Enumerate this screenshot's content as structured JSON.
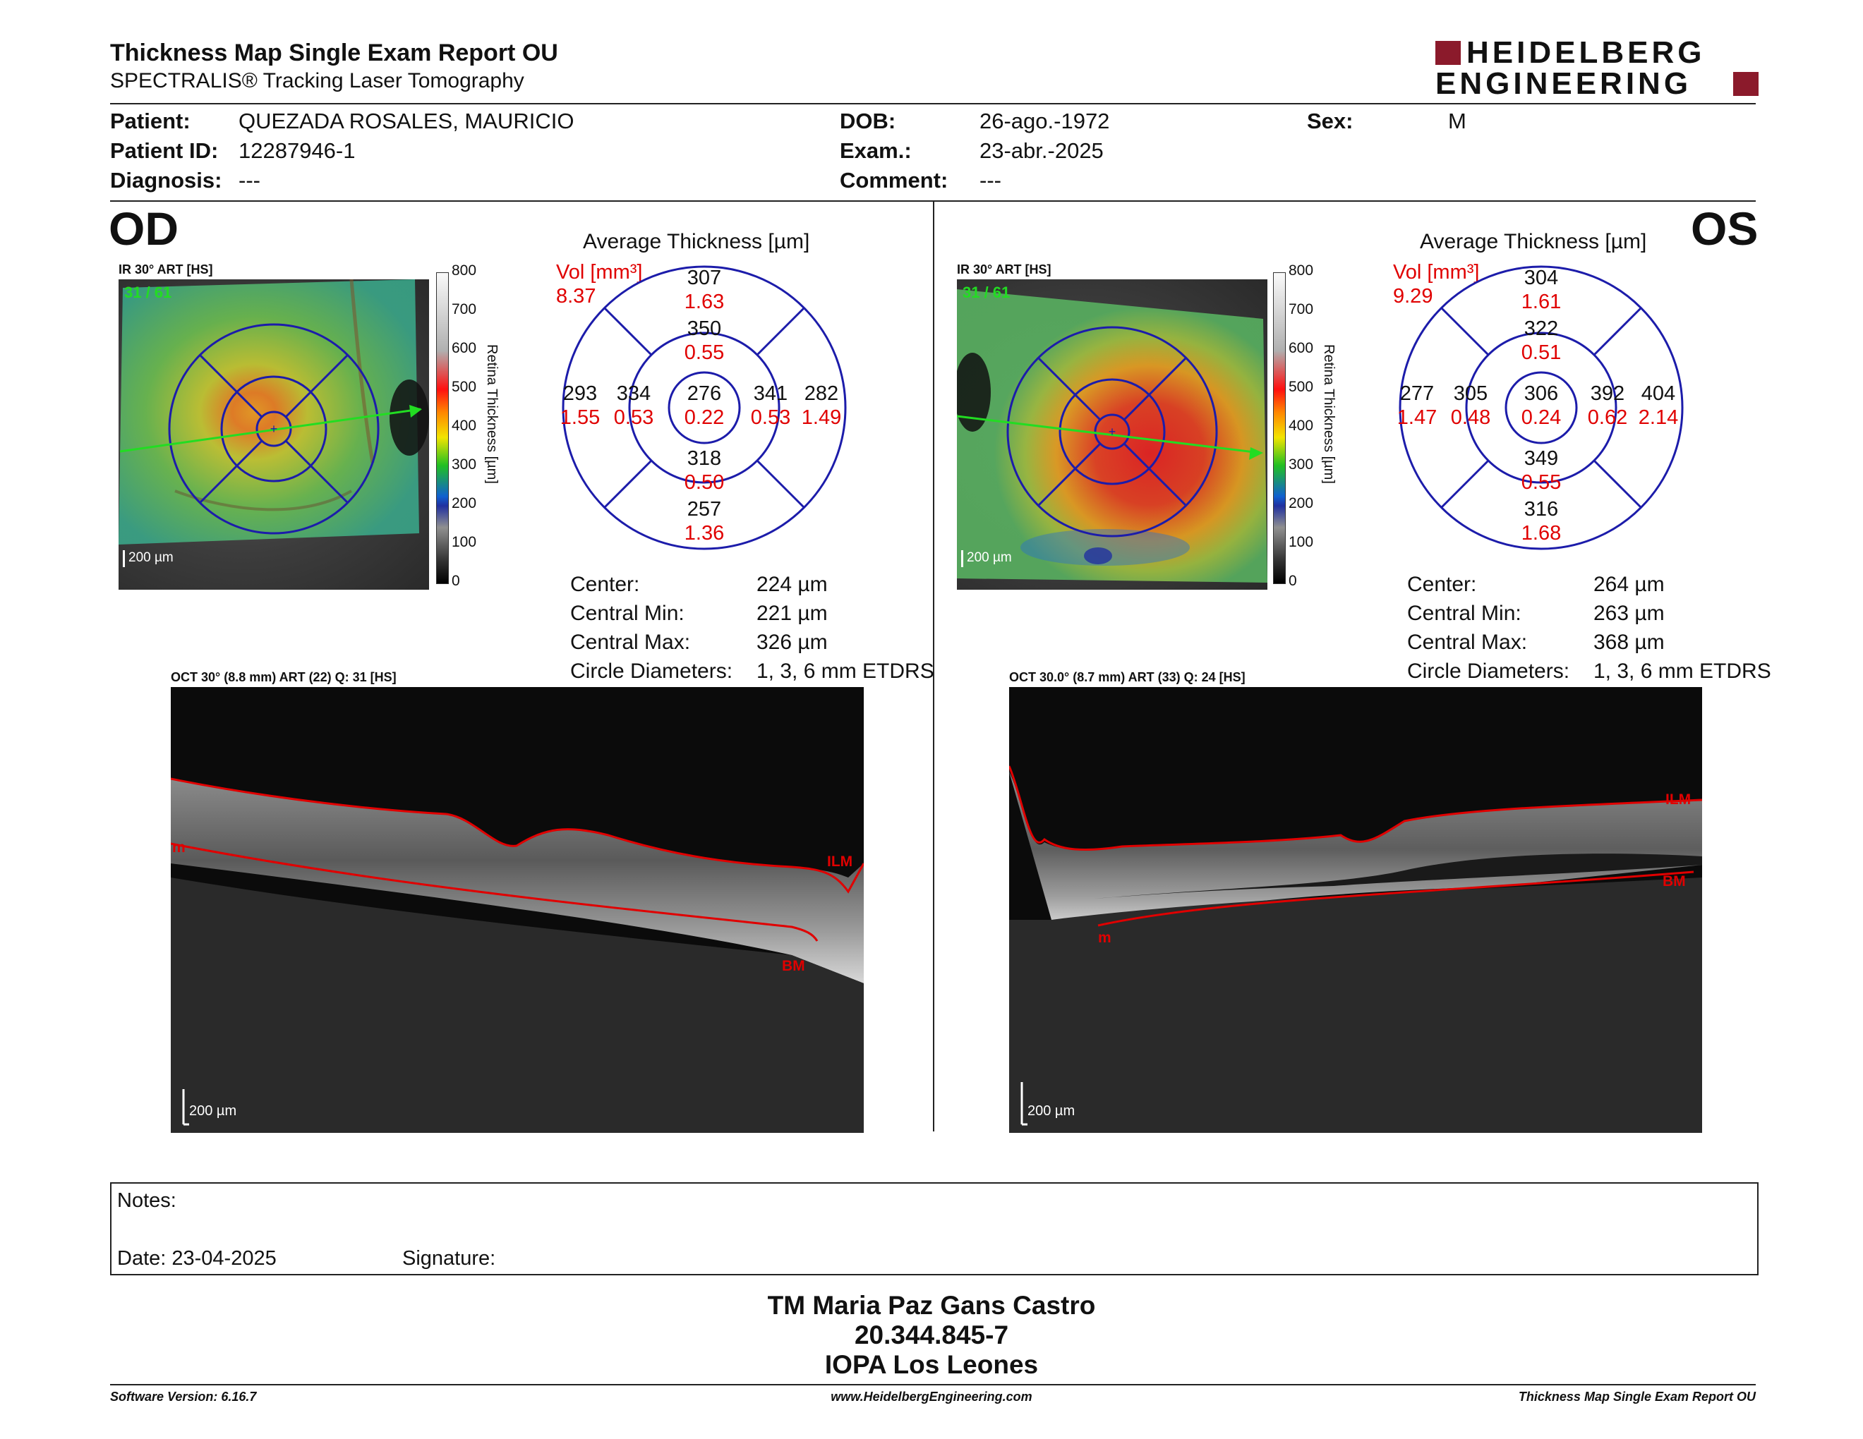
{
  "header": {
    "title": "Thickness Map Single Exam Report OU",
    "subtitle": "SPECTRALIS® Tracking Laser Tomography",
    "logo_line1": "HEIDELBERG",
    "logo_line2": "ENGINEERING"
  },
  "patient": {
    "patient_label": "Patient:",
    "patient_value": "QUEZADA ROSALES, MAURICIO",
    "patient_id_label": "Patient ID:",
    "patient_id_value": "12287946-1",
    "diagnosis_label": "Diagnosis:",
    "diagnosis_value": "---",
    "dob_label": "DOB:",
    "dob_value": "26-ago.-1972",
    "exam_label": "Exam.:",
    "exam_value": "23-abr.-2025",
    "comment_label": "Comment:",
    "comment_value": "---",
    "sex_label": "Sex:",
    "sex_value": "M"
  },
  "od": {
    "eye_label": "OD",
    "ir_label": "IR 30° ART [HS]",
    "ir_frame": "31 / 61",
    "ir_scale": "200 µm",
    "colorbar_ticks": [
      "800",
      "700",
      "600",
      "500",
      "400",
      "300",
      "200",
      "100",
      "0"
    ],
    "colorbar_title": "Retina  Thickness [µm]",
    "avg_title": "Average Thickness [µm]",
    "vol_label": "Vol [mm³]",
    "vol_value": "8.37",
    "sectors": {
      "center": {
        "t": "276",
        "v": "0.22"
      },
      "inner_superior": {
        "t": "350",
        "v": "0.55"
      },
      "inner_inferior": {
        "t": "318",
        "v": "0.50"
      },
      "inner_left": {
        "t": "334",
        "v": "0.53"
      },
      "inner_right": {
        "t": "341",
        "v": "0.53"
      },
      "outer_superior": {
        "t": "307",
        "v": "1.63"
      },
      "outer_inferior": {
        "t": "257",
        "v": "1.36"
      },
      "outer_left": {
        "t": "293",
        "v": "1.55"
      },
      "outer_right": {
        "t": "282",
        "v": "1.49"
      }
    },
    "stats": [
      {
        "label": "Center:",
        "value": "224 µm"
      },
      {
        "label": "Central Min:",
        "value": "221 µm"
      },
      {
        "label": "Central Max:",
        "value": "326 µm"
      },
      {
        "label": "Circle Diameters:",
        "value": "1, 3, 6 mm ETDRS"
      }
    ],
    "oct_label": "OCT 30° (8.8 mm) ART (22) Q: 31 [HS]",
    "oct_scale": "200 µm",
    "oct_ilm": "ILM",
    "oct_bm": "BM",
    "oct_m": "m"
  },
  "os": {
    "eye_label": "OS",
    "ir_label": "IR 30° ART [HS]",
    "ir_frame": "31 / 61",
    "ir_scale": "200 µm",
    "colorbar_ticks": [
      "800",
      "700",
      "600",
      "500",
      "400",
      "300",
      "200",
      "100",
      "0"
    ],
    "colorbar_title": "Retina  Thickness [µm]",
    "avg_title": "Average Thickness [µm]",
    "vol_label": "Vol [mm³]",
    "vol_value": "9.29",
    "sectors": {
      "center": {
        "t": "306",
        "v": "0.24"
      },
      "inner_superior": {
        "t": "322",
        "v": "0.51"
      },
      "inner_inferior": {
        "t": "349",
        "v": "0.55"
      },
      "inner_left": {
        "t": "305",
        "v": "0.48"
      },
      "inner_right": {
        "t": "392",
        "v": "0.62"
      },
      "outer_superior": {
        "t": "304",
        "v": "1.61"
      },
      "outer_inferior": {
        "t": "316",
        "v": "1.68"
      },
      "outer_left": {
        "t": "277",
        "v": "1.47"
      },
      "outer_right": {
        "t": "404",
        "v": "2.14"
      }
    },
    "stats": [
      {
        "label": "Center:",
        "value": "264 µm"
      },
      {
        "label": "Central Min:",
        "value": "263 µm"
      },
      {
        "label": "Central Max:",
        "value": "368 µm"
      },
      {
        "label": "Circle Diameters:",
        "value": "1, 3, 6 mm ETDRS"
      }
    ],
    "oct_label": "OCT 30.0° (8.7 mm) ART (33) Q: 24 [HS]",
    "oct_scale": "200 µm",
    "oct_ilm": "ILM",
    "oct_bm": "BM",
    "oct_m": "m"
  },
  "notes": {
    "notes_label": "Notes:",
    "date_label": "Date: 23-04-2025",
    "signature_label": "Signature:"
  },
  "signer": {
    "name": "TM Maria Paz Gans Castro",
    "id": "20.344.845-7",
    "org": "IOPA Los Leones"
  },
  "footer": {
    "software": "Software Version: 6.16.7",
    "website": "www.HeidelbergEngineering.com",
    "report": "Thickness Map Single Exam Report OU"
  },
  "colors": {
    "accent_red": "#e00000",
    "grid_blue": "#1c1caa",
    "logo_red": "#8b1a2b",
    "scan_green": "#22dd22"
  }
}
